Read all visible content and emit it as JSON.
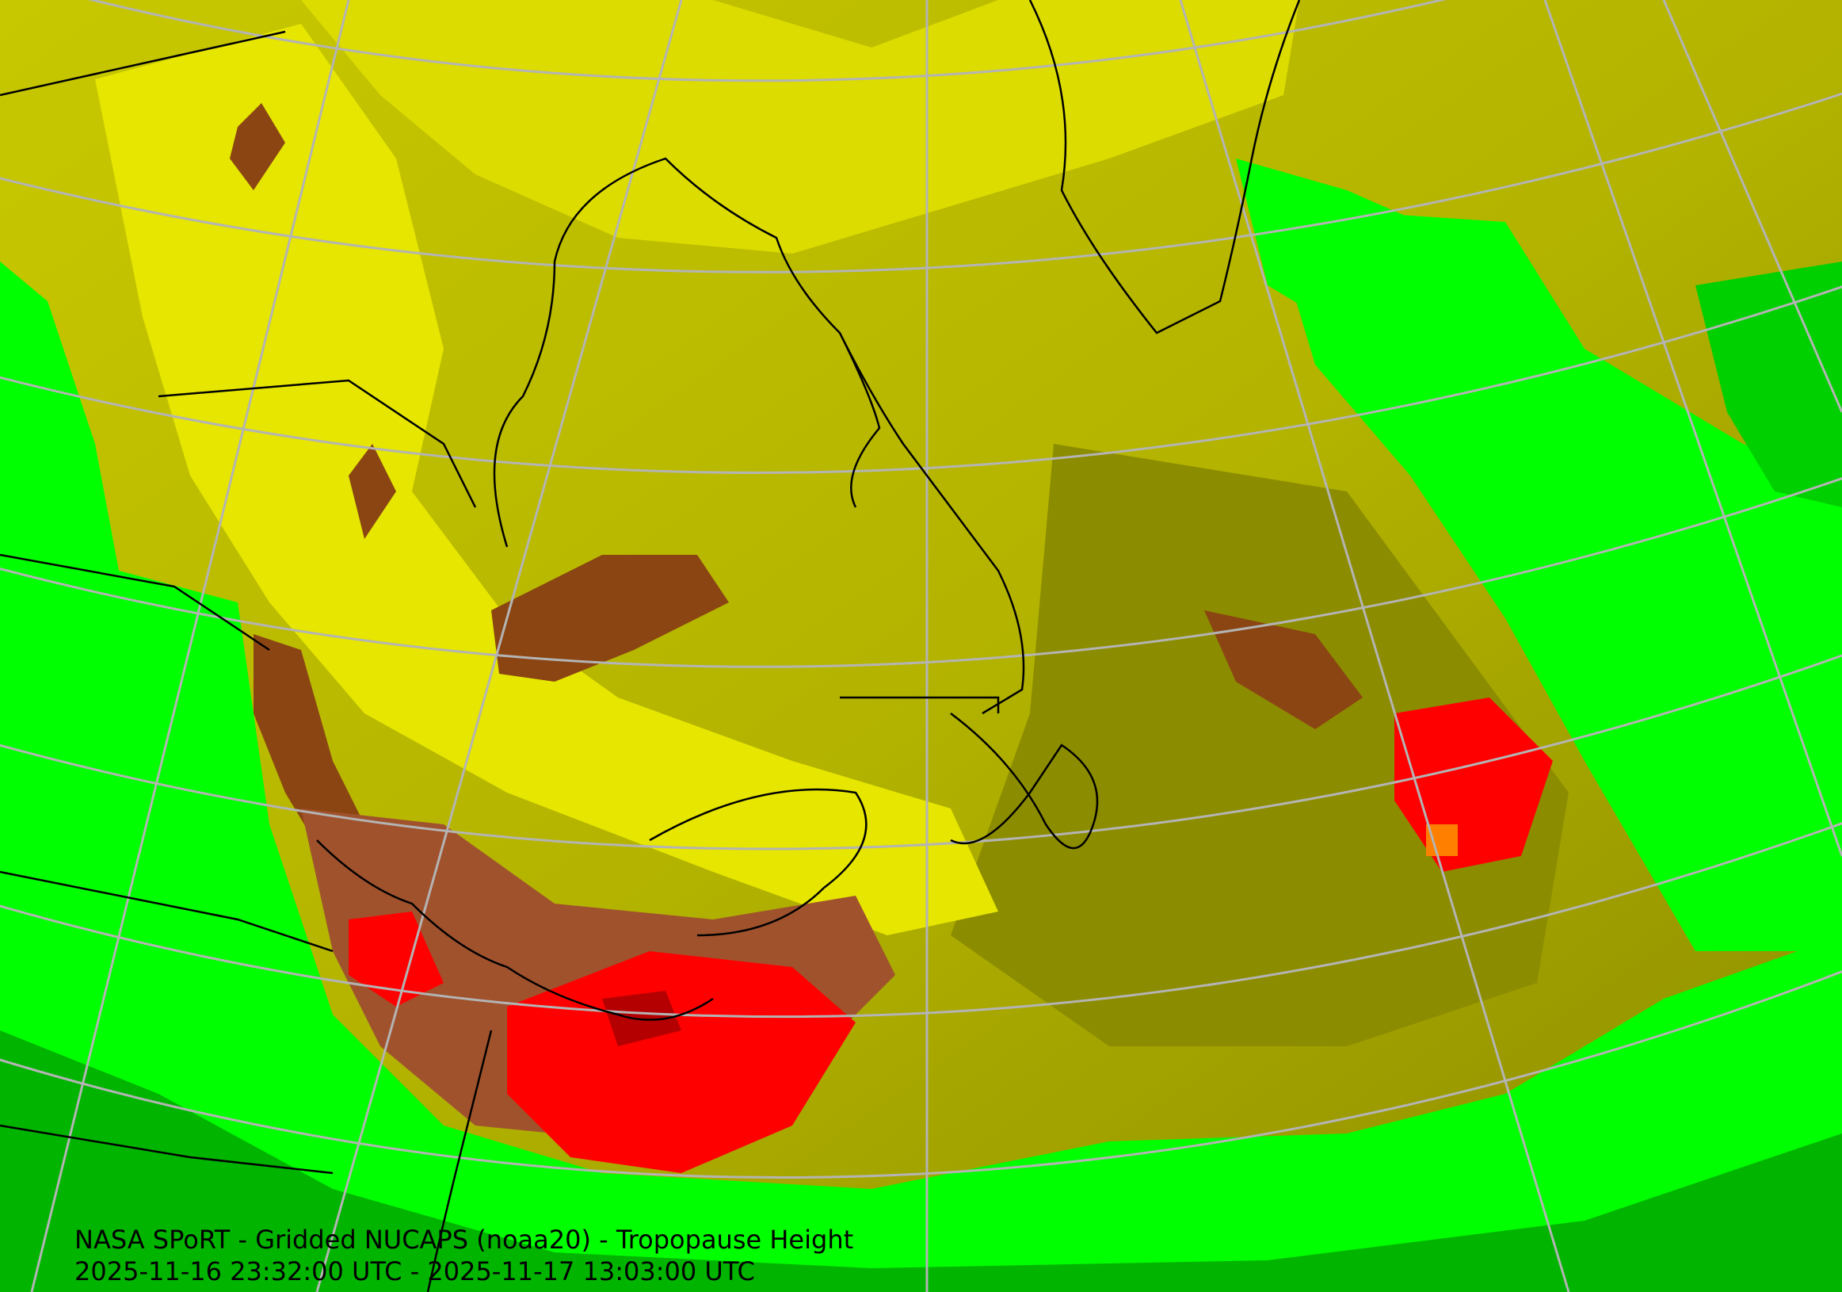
{
  "caption": {
    "line1": "NASA SPoRT - Gridded NUCAPS (noaa20) - Tropopause Height",
    "line2": "2025-11-16 23:32:00 UTC - 2025-11-17 13:03:00 UTC"
  },
  "colors": {
    "green": "#00ff00",
    "dark_green": "#00b400",
    "olive": "#8c8c00",
    "light_olive": "#c8c800",
    "yellow": "#ffff00",
    "brown": "#8b4513",
    "dark_brown": "#a0522d",
    "orange": "#ff8000",
    "red": "#ff0000",
    "dark_red": "#b40000",
    "graticule": "#b4b4b4",
    "coastline": "#000000"
  },
  "legend": []
}
